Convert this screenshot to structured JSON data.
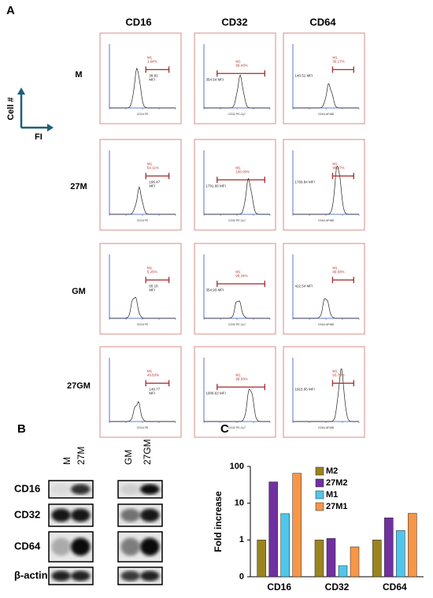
{
  "panel_a": {
    "label": "A",
    "columns": [
      "CD16",
      "CD32",
      "CD64"
    ],
    "axis_icon": {
      "y": "Cell #",
      "x": "FI"
    },
    "xlabels": [
      "CD16 PE",
      "CD32 PE-Cy7",
      "CD64 AF488"
    ],
    "rows": [
      {
        "label": "M",
        "cells": [
          {
            "gate": "M1",
            "percent": "1.64%",
            "mfi": [
              "38.82",
              "MFI"
            ]
          },
          {
            "gate": "M1",
            "percent": "99.43%",
            "mfi": [
              "354.54 MFI"
            ]
          },
          {
            "gate": "M1",
            "percent": "30.17%",
            "mfi": [
              "140.51 MFI"
            ]
          }
        ]
      },
      {
        "label": "27M",
        "cells": [
          {
            "gate": "M1",
            "percent": "54.11%",
            "mfi": [
              "196.47",
              "MFI"
            ]
          },
          {
            "gate": "M1",
            "percent": "100.00%",
            "mfi": [
              "1791.60 MFI"
            ]
          },
          {
            "gate": "M1",
            "percent": "99.97%",
            "mfi": [
              "1769.84 MFI"
            ]
          }
        ]
      },
      {
        "label": "GM",
        "cells": [
          {
            "gate": "M1",
            "percent": "5.25%",
            "mfi": [
              "65.18",
              "MFI"
            ]
          },
          {
            "gate": "M1",
            "percent": "99.34%",
            "mfi": [
              "354.93 MFI"
            ]
          },
          {
            "gate": "M1",
            "percent": "89.58%",
            "mfi": [
              "422.54 MFI"
            ]
          }
        ]
      },
      {
        "label": "27GM",
        "cells": [
          {
            "gate": "M1",
            "percent": "49.63%",
            "mfi": [
              "149.77",
              "MFI"
            ]
          },
          {
            "gate": "M1",
            "percent": "98.93%",
            "mfi": [
              "1908.63 MFI"
            ]
          },
          {
            "gate": "M1",
            "percent": "93.76%",
            "mfi": [
              "1915.95 MFI"
            ]
          }
        ]
      }
    ]
  },
  "panel_b": {
    "label": "B",
    "lanes": [
      "M",
      "27M",
      "GM",
      "27GM"
    ],
    "proteins": [
      "CD16",
      "CD32",
      "CD64",
      "β-actin"
    ]
  },
  "chart_data": {
    "type": "bar",
    "label": "C",
    "ylabel": "Fold increase",
    "categories": [
      "CD16",
      "CD32",
      "CD64"
    ],
    "series": [
      {
        "name": "M2",
        "color": "#9a8420",
        "values": [
          1,
          1,
          1
        ]
      },
      {
        "name": "27M2",
        "color": "#7030a0",
        "values": [
          38,
          1.1,
          4
        ]
      },
      {
        "name": "M1",
        "color": "#4fc6ea",
        "values": [
          5.2,
          0.2,
          1.8
        ]
      },
      {
        "name": "27M1",
        "color": "#f79646",
        "values": [
          65,
          0.65,
          5.3
        ]
      }
    ],
    "log_scale": true,
    "ylim": [
      0.1,
      100
    ],
    "yticks": [
      {
        "value": 0.1,
        "label": "0"
      },
      1,
      10,
      100
    ]
  }
}
